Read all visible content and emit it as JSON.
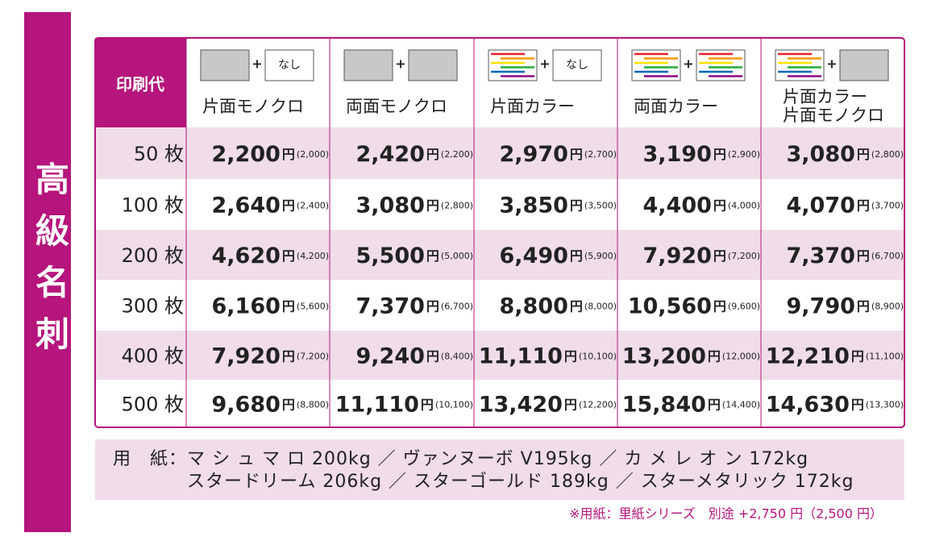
{
  "side_label": "高級名刺",
  "table": {
    "corner": "印刷代",
    "unit": "円",
    "columns": [
      {
        "back": "なし",
        "label": [
          "片面モノクロ"
        ]
      },
      {
        "label": [
          "両面モノクロ"
        ]
      },
      {
        "back": "なし",
        "label": [
          "片面カラー"
        ]
      },
      {
        "label": [
          "両面カラー"
        ]
      },
      {
        "label": [
          "片面カラー",
          "片面モノクロ"
        ]
      }
    ],
    "rows": [
      {
        "quantity": "50 枚",
        "prices": [
          {
            "price": "2,200",
            "sub": "(2,000)"
          },
          {
            "price": "2,420",
            "sub": "(2,200)"
          },
          {
            "price": "2,970",
            "sub": "(2,700)"
          },
          {
            "price": "3,190",
            "sub": "(2,900)"
          },
          {
            "price": "3,080",
            "sub": "(2,800)"
          }
        ]
      },
      {
        "quantity": "100 枚",
        "prices": [
          {
            "price": "2,640",
            "sub": "(2,400)"
          },
          {
            "price": "3,080",
            "sub": "(2,800)"
          },
          {
            "price": "3,850",
            "sub": "(3,500)"
          },
          {
            "price": "4,400",
            "sub": "(4,000)"
          },
          {
            "price": "4,070",
            "sub": "(3,700)"
          }
        ]
      },
      {
        "quantity": "200 枚",
        "prices": [
          {
            "price": "4,620",
            "sub": "(4,200)"
          },
          {
            "price": "5,500",
            "sub": "(5,000)"
          },
          {
            "price": "6,490",
            "sub": "(5,900)"
          },
          {
            "price": "7,920",
            "sub": "(7,200)"
          },
          {
            "price": "7,370",
            "sub": "(6,700)"
          }
        ]
      },
      {
        "quantity": "300 枚",
        "prices": [
          {
            "price": "6,160",
            "sub": "(5,600)"
          },
          {
            "price": "7,370",
            "sub": "(6,700)"
          },
          {
            "price": "8,800",
            "sub": "(8,000)"
          },
          {
            "price": "10,560",
            "sub": "(9,600)"
          },
          {
            "price": "9,790",
            "sub": "(8,900)"
          }
        ]
      },
      {
        "quantity": "400 枚",
        "prices": [
          {
            "price": "7,920",
            "sub": "(7,200)"
          },
          {
            "price": "9,240",
            "sub": "(8,400)"
          },
          {
            "price": "11,110",
            "sub": "(10,100)"
          },
          {
            "price": "13,200",
            "sub": "(12,000)"
          },
          {
            "price": "12,210",
            "sub": "(11,100)"
          }
        ]
      },
      {
        "quantity": "500 枚",
        "prices": [
          {
            "price": "9,680",
            "sub": "(8,800)"
          },
          {
            "price": "11,110",
            "sub": "(10,100)"
          },
          {
            "price": "13,420",
            "sub": "(12,200)"
          },
          {
            "price": "15,840",
            "sub": "(14,400)"
          },
          {
            "price": "14,630",
            "sub": "(13,300)"
          }
        ]
      }
    ]
  },
  "paper": {
    "label": "用　紙：",
    "lines": [
      "マ シ ュ マ ロ 200kg ／ ヴァンヌーボ V195kg ／ カ メ レ オ ン 172kg",
      "スタードリーム 206kg ／ スターゴールド 189kg ／ スターメタリック 172kg"
    ]
  },
  "note": "※用紙：里紙シリーズ　別途 +2,750 円（2,500 円）"
}
